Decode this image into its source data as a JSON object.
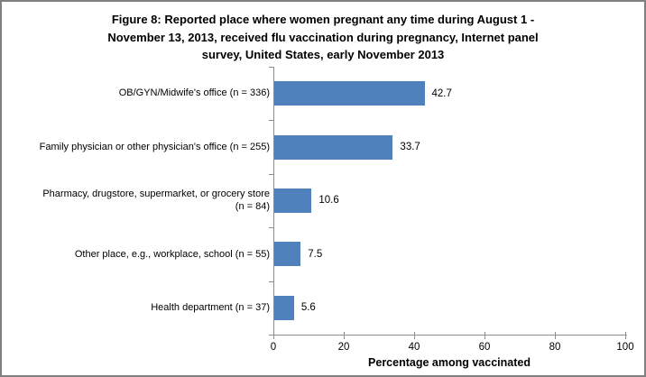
{
  "figure": {
    "title_lines": [
      "Figure 8: Reported place where women pregnant any time during August 1 -",
      "November 13, 2013, received flu vaccination during pregnancy, Internet panel",
      "survey, United States, early November 2013"
    ],
    "category_label_lines": [
      [
        "OB/GYN/Midwife's office (n = 336)"
      ],
      [
        "Family physician or other physician's office (n = 255)"
      ],
      [
        "Pharmacy, drugstore, supermarket, or grocery store",
        "(n = 84)"
      ],
      [
        "Other place, e.g., workplace, school (n = 55)"
      ],
      [
        "Health department (n = 37)"
      ]
    ],
    "border_color": "#808080"
  },
  "chart_data": {
    "type": "bar",
    "orientation": "horizontal",
    "title": "Figure 8: Reported place where women pregnant any time during August 1 - November 13, 2013, received flu vaccination during pregnancy, Internet panel survey, United States, early November 2013",
    "categories": [
      "OB/GYN/Midwife's office (n = 336)",
      "Family physician or other physician's office (n = 255)",
      "Pharmacy, drugstore, supermarket, or grocery store (n = 84)",
      "Other place, e.g., workplace, school (n = 55)",
      "Health department (n = 37)"
    ],
    "values": [
      42.7,
      33.7,
      10.6,
      7.5,
      5.6
    ],
    "data_labels": [
      "42.7",
      "33.7",
      "10.6",
      "7.5",
      "5.6"
    ],
    "xlabel": "Percentage among vaccinated",
    "ylabel": "",
    "xlim": [
      0,
      100
    ],
    "xticks": [
      0,
      20,
      40,
      60,
      80,
      100
    ],
    "bar_color": "#4F81BD",
    "axis_color": "#8B8B8B",
    "grid": false,
    "legend": null
  }
}
